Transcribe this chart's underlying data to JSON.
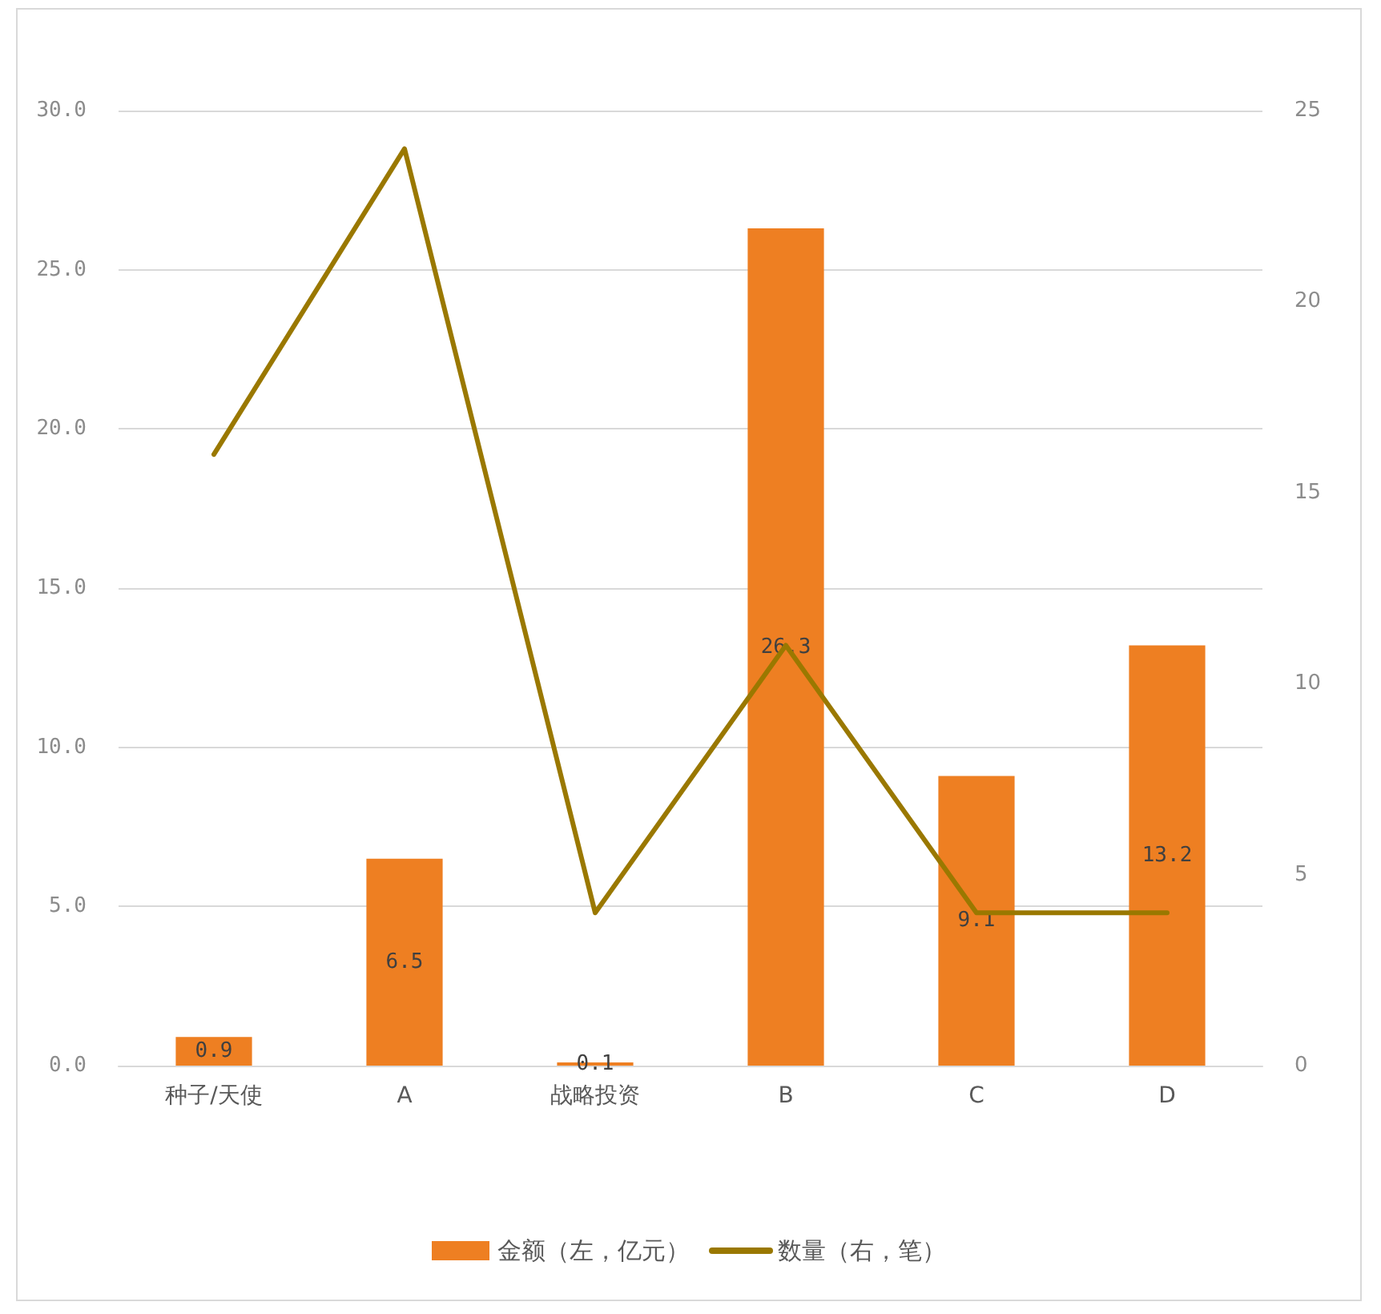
{
  "chart_data": {
    "type": "bar",
    "categories": [
      "种子/天使",
      "A",
      "战略投资",
      "B",
      "C",
      "D"
    ],
    "series": [
      {
        "name": "金额（左，亿元）",
        "color": "#ee7f22",
        "values": [
          0.9,
          6.5,
          0.1,
          26.3,
          9.1,
          13.2
        ],
        "data_labels": true
      },
      {
        "name": "数量（右，笔）",
        "type": "line",
        "axis": "y2",
        "color": "#9a7800",
        "values": [
          16,
          24,
          4,
          11,
          4,
          4
        ]
      }
    ],
    "ylim": [
      0,
      30
    ],
    "yticks": [
      {
        "value": 0,
        "label": "0.0"
      },
      {
        "value": 5,
        "label": "5.0"
      },
      {
        "value": 10,
        "label": "10.0"
      },
      {
        "value": 15,
        "label": "15.0"
      },
      {
        "value": 20,
        "label": "20.0"
      },
      {
        "value": 25,
        "label": "25.0"
      },
      {
        "value": 30,
        "label": "30.0"
      }
    ],
    "y2lim": [
      0,
      25
    ],
    "y2ticks": [
      0,
      5,
      10,
      15,
      20,
      25
    ],
    "grid": "y",
    "legend": "bottom",
    "marker": "none"
  }
}
